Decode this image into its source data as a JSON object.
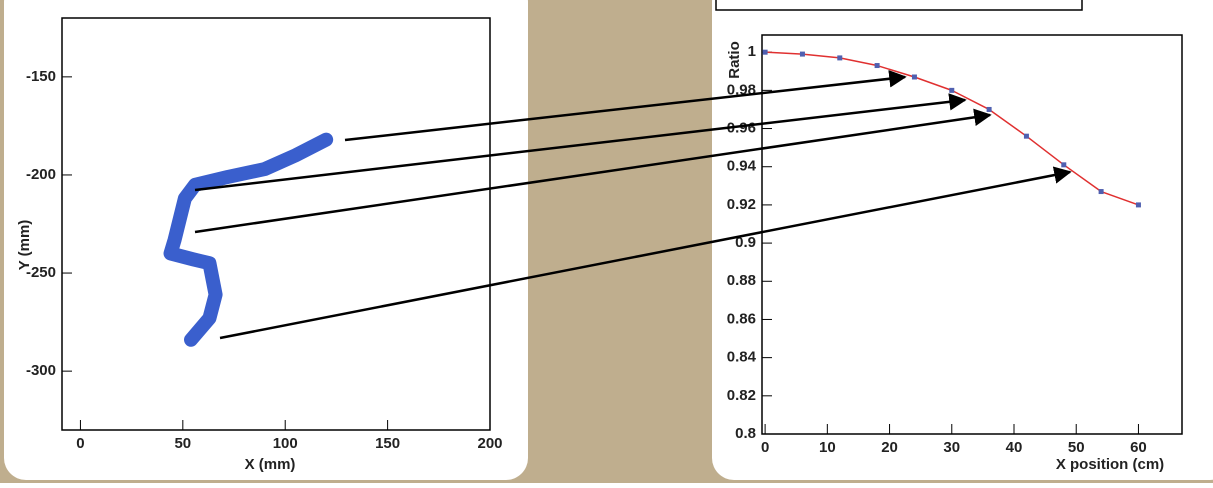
{
  "chart_data": [
    {
      "type": "line",
      "xlabel": "X (mm)",
      "ylabel": "Y (mm)",
      "x": [
        120,
        105,
        90,
        72,
        56,
        51,
        46,
        44,
        55,
        63,
        66,
        63,
        54
      ],
      "series": [
        {
          "color": "#3a5fcd",
          "values": [
            -182,
            -190,
            -197,
            -201,
            -205,
            -212,
            -233,
            -240,
            -243,
            -245,
            -261,
            -273,
            -284
          ]
        }
      ],
      "xlim": [
        -9,
        200
      ],
      "ylim": [
        -330,
        -120
      ],
      "xticks": [
        0,
        50,
        100,
        150,
        200
      ],
      "yticks": [
        -150,
        -200,
        -250,
        -300
      ]
    },
    {
      "type": "line",
      "xlabel": "X position (cm)",
      "ylabel": "Ratio",
      "x": [
        0,
        6,
        12,
        18,
        24,
        30,
        36,
        42,
        48,
        54,
        60
      ],
      "series": [
        {
          "color": "#e03030",
          "marker_color": "#5060b0",
          "values": [
            1.0,
            0.999,
            0.997,
            0.993,
            0.987,
            0.98,
            0.97,
            0.956,
            0.941,
            0.927,
            0.92
          ]
        }
      ],
      "xlim": [
        -0.5,
        67
      ],
      "ylim": [
        0.8,
        1.009
      ],
      "xticks": [
        0,
        10,
        20,
        30,
        40,
        50,
        60
      ],
      "yticks": [
        0.8,
        0.82,
        0.84,
        0.86,
        0.88,
        0.9,
        0.92,
        0.94,
        0.96,
        0.98,
        1
      ]
    }
  ]
}
